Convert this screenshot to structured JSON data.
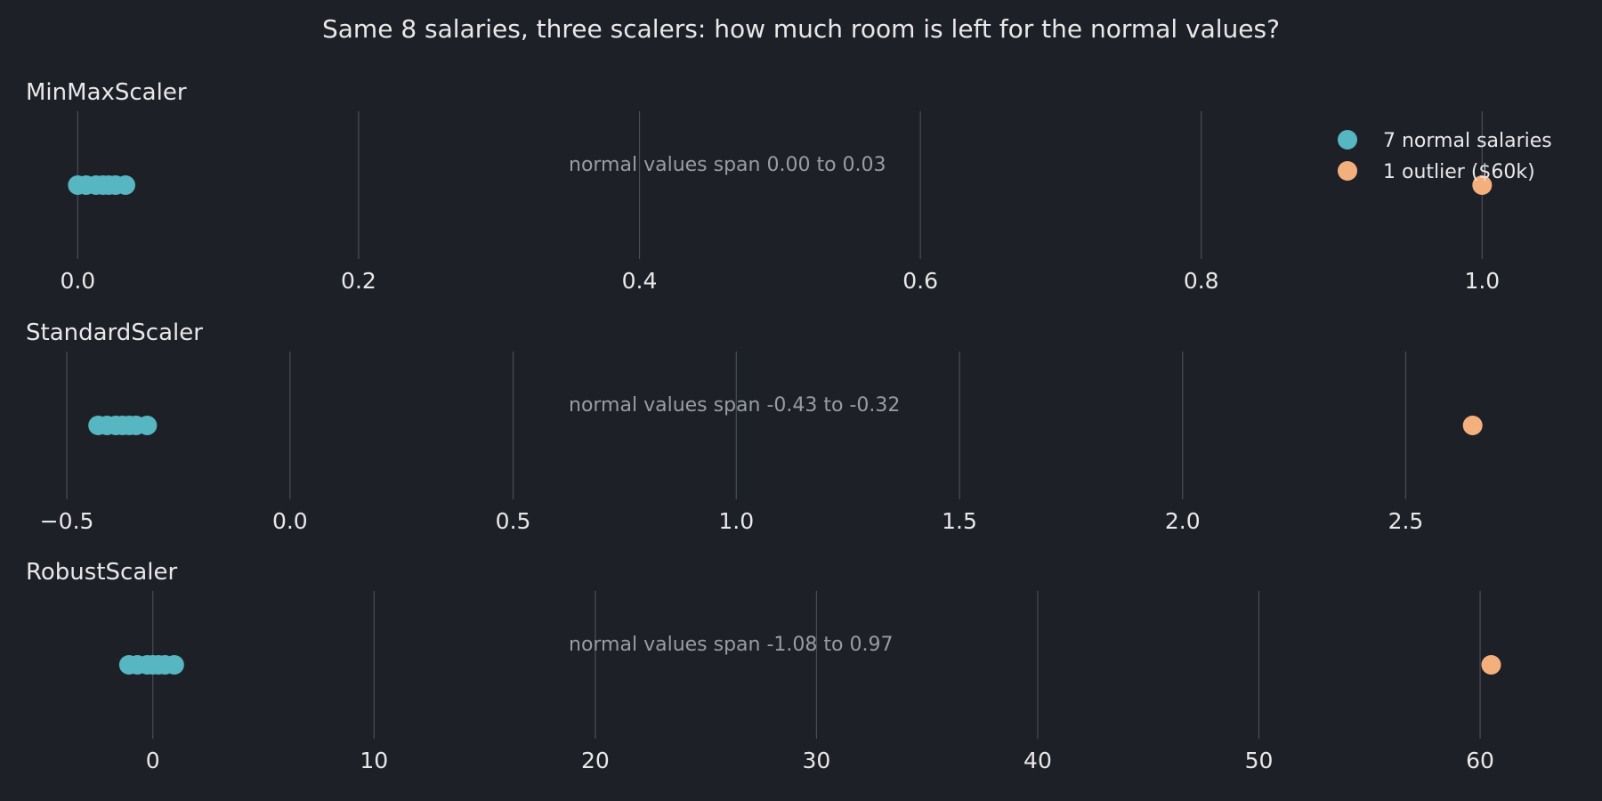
{
  "chart_data": {
    "type": "scatter",
    "title": "Same 8 salaries, three scalers: how much room is left for the normal values?",
    "legend": {
      "placement": "top-right",
      "entries": [
        {
          "label": "7 normal salaries",
          "color": "#56b6c2"
        },
        {
          "label": "1 outlier ($60k)",
          "color": "#f4b07c"
        }
      ]
    },
    "colors": {
      "normal": "#56b6c2",
      "outlier": "#f4b07c",
      "background": "#1e2028"
    },
    "panels": [
      {
        "name": "MinMaxScaler",
        "xlim": [
          -0.03,
          1.06
        ],
        "ticks": [
          0.0,
          0.2,
          0.4,
          0.6,
          0.8,
          1.0
        ],
        "tick_labels": [
          "0.0",
          "0.2",
          "0.4",
          "0.6",
          "0.8",
          "1.0"
        ],
        "normal_values": [
          0.0,
          0.006,
          0.013,
          0.018,
          0.022,
          0.027,
          0.034
        ],
        "outlier_value": 1.0,
        "annotation": "normal values span 0.00 to 0.03"
      },
      {
        "name": "StandardScaler",
        "xlim": [
          -0.57,
          2.86
        ],
        "ticks": [
          -0.5,
          0.0,
          0.5,
          1.0,
          1.5,
          2.0,
          2.5
        ],
        "tick_labels": [
          "−0.5",
          "0.0",
          "0.5",
          "1.0",
          "1.5",
          "2.0",
          "2.5"
        ],
        "normal_values": [
          -0.43,
          -0.41,
          -0.39,
          -0.375,
          -0.36,
          -0.345,
          -0.32
        ],
        "outlier_value": 2.65,
        "annotation": "normal values span -0.43 to -0.32"
      },
      {
        "name": "RobustScaler",
        "xlim": [
          -5.3,
          63.9
        ],
        "ticks": [
          0,
          10,
          20,
          30,
          40,
          50,
          60
        ],
        "tick_labels": [
          "0",
          "10",
          "20",
          "30",
          "40",
          "50",
          "60"
        ],
        "normal_values": [
          -1.08,
          -0.7,
          -0.25,
          0.0,
          0.25,
          0.55,
          0.97
        ],
        "outlier_value": 60.5,
        "annotation": "normal values span -1.08 to 0.97"
      }
    ]
  }
}
